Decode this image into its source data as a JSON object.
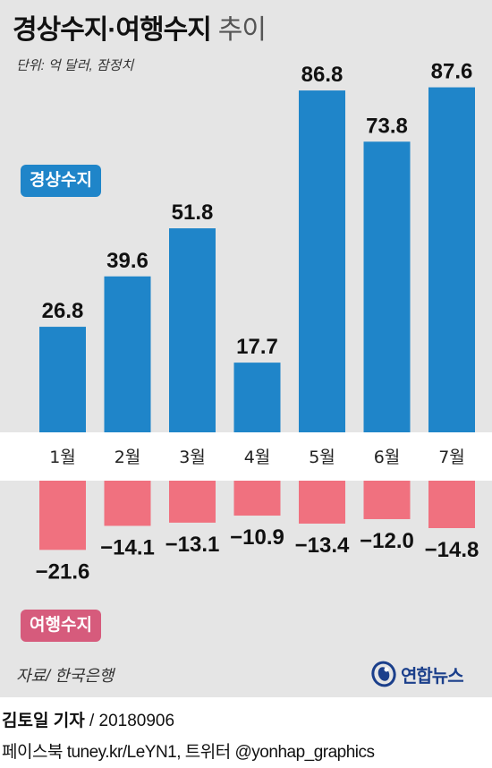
{
  "title": {
    "bold": "경상수지·여행수지",
    "light": "추이"
  },
  "unit_note": "단위: 억 달러, 잠정치",
  "colors": {
    "current_account": "#1f85c9",
    "travel_account": "#f0717f",
    "travel_legend": "#d65b7c",
    "panel": "#e5e5e5"
  },
  "chart_data": {
    "type": "bar",
    "categories": [
      "1월",
      "2월",
      "3월",
      "4월",
      "5월",
      "6월",
      "7월"
    ],
    "series": [
      {
        "name": "경상수지",
        "values": [
          26.8,
          39.6,
          51.8,
          17.7,
          86.8,
          73.8,
          87.6
        ],
        "labels": [
          "26.8",
          "39.6",
          "51.8",
          "17.7",
          "86.8",
          "73.8",
          "87.6"
        ]
      },
      {
        "name": "여행수지",
        "values": [
          -21.6,
          -14.1,
          -13.1,
          -10.9,
          -13.4,
          -12.0,
          -14.8
        ],
        "labels": [
          "−21.6",
          "−14.1",
          "−13.1",
          "−10.9",
          "−13.4",
          "−12.0",
          "−14.8"
        ]
      }
    ],
    "legend": [
      "경상수지",
      "여행수지"
    ]
  },
  "source": "자료/ 한국은행",
  "logo": {
    "text": "연합뉴스",
    "icon": "yonhap-logo-icon"
  },
  "credit": {
    "reporter": "김토일 기자",
    "date": " / 20180906"
  },
  "social": "페이스북 tuney.kr/LeYN1, 트위터 @yonhap_graphics"
}
